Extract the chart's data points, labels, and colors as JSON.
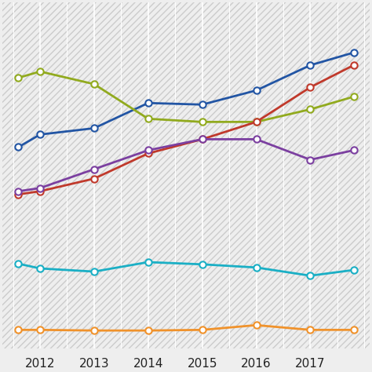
{
  "x_ticks": [
    2012,
    2013,
    2014,
    2015,
    2016,
    2017
  ],
  "series": [
    {
      "name": "blue",
      "color": "#2255a4",
      "data_x": [
        2011.6,
        2012,
        2013,
        2014,
        2015,
        2016,
        2017,
        2017.8
      ],
      "data_y": [
        0.64,
        0.68,
        0.7,
        0.78,
        0.775,
        0.82,
        0.9,
        0.94
      ]
    },
    {
      "name": "olive",
      "color": "#91aa1e",
      "data_x": [
        2011.6,
        2012,
        2013,
        2014,
        2015,
        2016,
        2017,
        2017.8
      ],
      "data_y": [
        0.86,
        0.88,
        0.84,
        0.73,
        0.72,
        0.72,
        0.76,
        0.8
      ]
    },
    {
      "name": "red",
      "color": "#c0392b",
      "data_x": [
        2011.6,
        2012,
        2013,
        2014,
        2015,
        2016,
        2017,
        2017.8
      ],
      "data_y": [
        0.49,
        0.5,
        0.54,
        0.62,
        0.665,
        0.72,
        0.83,
        0.9
      ]
    },
    {
      "name": "purple",
      "color": "#7b3fa0",
      "data_x": [
        2011.6,
        2012,
        2013,
        2014,
        2015,
        2016,
        2017,
        2017.8
      ],
      "data_y": [
        0.5,
        0.51,
        0.57,
        0.63,
        0.665,
        0.665,
        0.6,
        0.63
      ]
    },
    {
      "name": "cyan",
      "color": "#1aafc5",
      "data_x": [
        2011.6,
        2012,
        2013,
        2014,
        2015,
        2016,
        2017,
        2017.8
      ],
      "data_y": [
        0.27,
        0.255,
        0.245,
        0.275,
        0.268,
        0.258,
        0.232,
        0.25
      ]
    },
    {
      "name": "orange",
      "color": "#f0922b",
      "data_x": [
        2011.6,
        2012,
        2013,
        2014,
        2015,
        2016,
        2017,
        2017.8
      ],
      "data_y": [
        0.06,
        0.06,
        0.058,
        0.058,
        0.06,
        0.075,
        0.06,
        0.06
      ]
    }
  ],
  "xlim": [
    2011.3,
    2018.1
  ],
  "ylim": [
    0.0,
    1.1
  ],
  "bg_color": "#eeeeee",
  "hatch_color": "#e0e0e0",
  "grid_color": "#ffffff",
  "marker_size": 6,
  "linewidth": 2.0
}
